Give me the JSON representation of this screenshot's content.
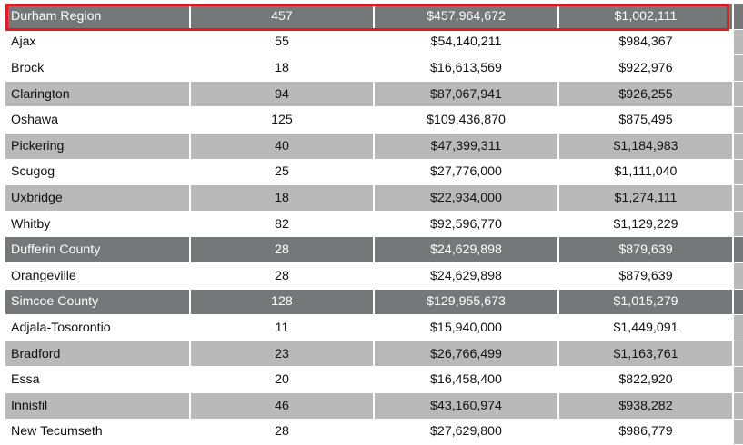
{
  "table": {
    "rows": [
      {
        "style": "region",
        "name": "Durham Region",
        "count": "457",
        "total": "$457,964,672",
        "average": "$1,002,111"
      },
      {
        "style": "plain",
        "name": "Ajax",
        "count": "55",
        "total": "$54,140,211",
        "average": "$984,367"
      },
      {
        "style": "plain",
        "name": "Brock",
        "count": "18",
        "total": "$16,613,569",
        "average": "$922,976"
      },
      {
        "style": "shade",
        "name": "Clarington",
        "count": "94",
        "total": "$87,067,941",
        "average": "$926,255"
      },
      {
        "style": "plain",
        "name": "Oshawa",
        "count": "125",
        "total": "$109,436,870",
        "average": "$875,495"
      },
      {
        "style": "shade",
        "name": "Pickering",
        "count": "40",
        "total": "$47,399,311",
        "average": "$1,184,983"
      },
      {
        "style": "plain",
        "name": "Scugog",
        "count": "25",
        "total": "$27,776,000",
        "average": "$1,111,040"
      },
      {
        "style": "shade",
        "name": "Uxbridge",
        "count": "18",
        "total": "$22,934,000",
        "average": "$1,274,111"
      },
      {
        "style": "plain",
        "name": "Whitby",
        "count": "82",
        "total": "$92,596,770",
        "average": "$1,129,229"
      },
      {
        "style": "region",
        "name": "Dufferin County",
        "count": "28",
        "total": "$24,629,898",
        "average": "$879,639"
      },
      {
        "style": "plain",
        "name": "Orangeville",
        "count": "28",
        "total": "$24,629,898",
        "average": "$879,639"
      },
      {
        "style": "region",
        "name": "Simcoe County",
        "count": "128",
        "total": "$129,955,673",
        "average": "$1,015,279"
      },
      {
        "style": "plain",
        "name": "Adjala-Tosorontio",
        "count": "11",
        "total": "$15,940,000",
        "average": "$1,449,091"
      },
      {
        "style": "shade",
        "name": "Bradford",
        "count": "23",
        "total": "$26,766,499",
        "average": "$1,163,761"
      },
      {
        "style": "plain",
        "name": "Essa",
        "count": "20",
        "total": "$16,458,400",
        "average": "$822,920"
      },
      {
        "style": "shade",
        "name": "Innisfil",
        "count": "46",
        "total": "$43,160,974",
        "average": "$938,282"
      },
      {
        "style": "plain",
        "name": "New Tecumseth",
        "count": "28",
        "total": "$27,629,800",
        "average": "$986,779"
      }
    ]
  },
  "highlight": {
    "row": "Durham Region",
    "color": "#e31b23"
  },
  "colors": {
    "region_row": "#767778",
    "shaded_row": "#b9b9b9",
    "plain_row": "#ffffff"
  }
}
